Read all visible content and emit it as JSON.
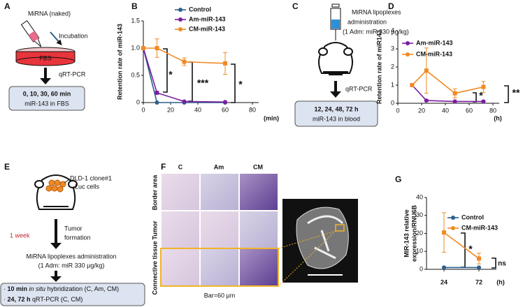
{
  "panel_labels": [
    "A",
    "B",
    "C",
    "D",
    "E",
    "F",
    "G"
  ],
  "panel_a": {
    "naked": "MiRNA (naked)",
    "incubation": "Incubation",
    "dish": "FBS",
    "assay": "qRT-PCR",
    "times": "0, 10, 30, 60 min",
    "sample": "miR-143 in FBS"
  },
  "panel_c": {
    "line1": "MiRNA lipoplexes",
    "line2": "administration",
    "line3": "(1 Adm: miR 330 μg/kg)",
    "assay": "qRT-PCR",
    "times": "12, 24, 48, 72 h",
    "sample": "miR-143 in blood"
  },
  "panel_e": {
    "cells1": "DLD-1 clone#1",
    "cells2": "-Luc cells",
    "week": "1 week",
    "tumor1": "Tumor",
    "tumor2": "formation",
    "admin1": "MiRNA lipoplexes administration",
    "admin2": "(1 Adm: miR 330 μg/kg)",
    "item1": [
      "· ",
      "10 min",
      " ",
      "in situ",
      " hybridization (C, Am, CM)"
    ],
    "item2": [
      "· ",
      "24, 72 h",
      " qRT-PCR (C, CM)"
    ]
  },
  "panel_f": {
    "columns": [
      "C",
      "Am",
      "CM"
    ],
    "rows": [
      "Border area",
      "Tumor",
      "Connective tissue"
    ],
    "scale": "Bar=60 μm"
  },
  "chart_data": [
    {
      "type": "line",
      "x_label": "(min)",
      "y_label": "Retention rate of miR-143",
      "x": [
        0,
        10,
        30,
        60
      ],
      "xlim": [
        0,
        80
      ],
      "xticks": [
        0,
        20,
        40,
        60,
        80
      ],
      "ylim": [
        0,
        1.5
      ],
      "yticks": [
        0,
        0.5,
        {
          "value": 1,
          "label": "1.0"
        },
        1.5
      ],
      "series": [
        {
          "name": "Control",
          "color": "#2b5f8c",
          "values": [
            1,
            0,
            0,
            0
          ]
        },
        {
          "name": "Am-miR-143",
          "color": "#7a1fa0",
          "values": [
            1,
            0.18,
            0.02,
            0.01
          ],
          "errors": [
            0,
            0.03,
            0.01,
            0.01
          ]
        },
        {
          "name": "CM-miR-143",
          "color": "#f08a24",
          "values": [
            1,
            1,
            0.75,
            0.72
          ],
          "errors": [
            0,
            0.17,
            0.07,
            0.2
          ]
        }
      ],
      "annotations": [
        "*",
        "***",
        "*"
      ],
      "legend": "top"
    },
    {
      "type": "line",
      "x_label": "(h)",
      "y_label": "Retention rate of miR143",
      "x": [
        12,
        24,
        48,
        72
      ],
      "xlim": [
        0,
        80
      ],
      "xticks": [
        0,
        20,
        40,
        60,
        80
      ],
      "ylim": [
        0,
        4
      ],
      "yticks": [
        0,
        1,
        2,
        3,
        4
      ],
      "series": [
        {
          "name": "Am-miR-143",
          "color": "#7a1fa0",
          "values": [
            1,
            0.15,
            0.1,
            0.1
          ],
          "errors": [
            0,
            0.05,
            0.03,
            0.03
          ]
        },
        {
          "name": "CM-miR-143",
          "color": "#f08a24",
          "values": [
            1,
            1.8,
            0.55,
            0.9
          ],
          "errors": [
            0,
            1.25,
            0.25,
            0.3
          ]
        }
      ],
      "annotations": [
        "*",
        "**"
      ],
      "legend": "top left"
    },
    {
      "type": "line",
      "x_label": "(h)",
      "y_label": [
        "MIR-143 relative",
        "expression/RNU6B"
      ],
      "categories": [
        "24",
        "72"
      ],
      "ylim": [
        0,
        40
      ],
      "yticks": [
        0,
        10,
        20,
        30,
        40
      ],
      "series": [
        {
          "name": "Control",
          "color": "#2b5f8c",
          "values": [
            1,
            1
          ]
        },
        {
          "name": "CM-miR-143",
          "color": "#f08a24",
          "values": [
            20.5,
            6
          ],
          "errors": [
            11,
            3
          ]
        }
      ],
      "annotations": [
        "*",
        "ns"
      ],
      "legend": "top right"
    }
  ]
}
